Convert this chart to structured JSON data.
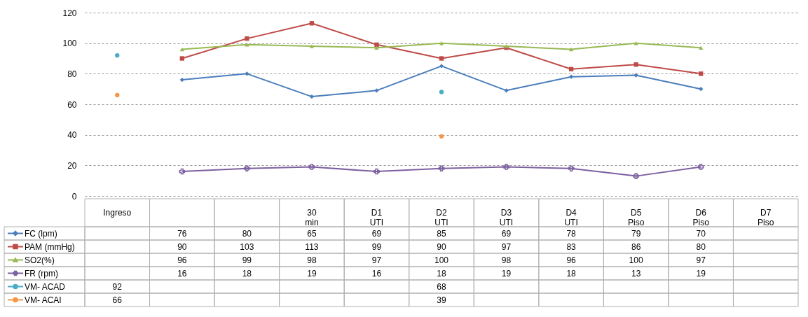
{
  "chart_data": {
    "type": "line",
    "categories": [
      "Ingreso",
      null,
      null,
      "30 min",
      "D1 UTI",
      "D2 UTI",
      "D3 UTI",
      "D4 UTI",
      "D5 Piso",
      "D6 Piso",
      "D7 Piso"
    ],
    "series": [
      {
        "name": "FC (lpm)",
        "color": "#4a7ebb",
        "marker": "diamond",
        "values": [
          null,
          76,
          80,
          65,
          69,
          85,
          69,
          78,
          79,
          70,
          null
        ]
      },
      {
        "name": "PAM (mmHg)",
        "color": "#be4b48",
        "marker": "square",
        "values": [
          null,
          90,
          103,
          113,
          99,
          90,
          97,
          83,
          86,
          80,
          null
        ]
      },
      {
        "name": "SO2(%)",
        "color": "#98b954",
        "marker": "triangle",
        "values": [
          null,
          96,
          99,
          98,
          97,
          100,
          98,
          96,
          100,
          97,
          null
        ]
      },
      {
        "name": "FR (rpm)",
        "color": "#7d60a0",
        "marker": "cross",
        "values": [
          null,
          16,
          18,
          19,
          16,
          18,
          19,
          18,
          13,
          19,
          null
        ]
      },
      {
        "name": "VM- ACAD",
        "color": "#4bacc6",
        "type": "scatter",
        "marker": "circle",
        "values": [
          92,
          null,
          null,
          null,
          null,
          68,
          null,
          null,
          null,
          null,
          null
        ]
      },
      {
        "name": "VM- ACAI",
        "color": "#f79646",
        "type": "scatter",
        "marker": "circle",
        "values": [
          66,
          null,
          null,
          null,
          null,
          39,
          null,
          null,
          null,
          null,
          null
        ]
      }
    ],
    "ylim": [
      0,
      120
    ],
    "yticks": [
      0,
      20,
      40,
      60,
      80,
      100,
      120
    ],
    "grid": "y",
    "legend": "bottom",
    "data_labels": true
  }
}
